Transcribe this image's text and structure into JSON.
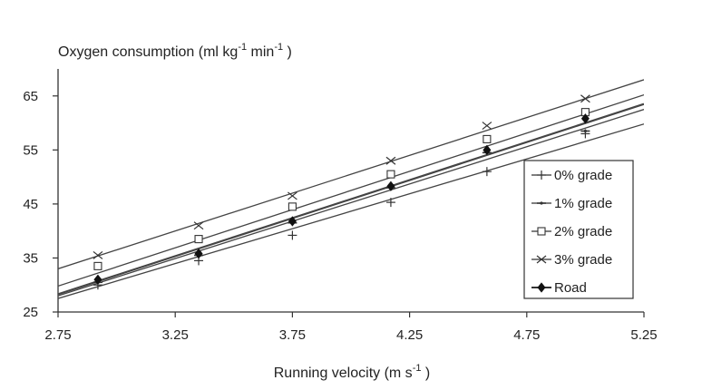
{
  "chart_data": {
    "type": "scatter",
    "title": "",
    "ylabel": "Oxygen consumption (ml kg-1 min-1)",
    "ylabel_parts": {
      "base1": "Oxygen consumption (ml kg",
      "sup1": "-1",
      "base2": " min",
      "sup2": "-1",
      "base3": " )"
    },
    "xlabel": "Running velocity (m s-1)",
    "xlabel_parts": {
      "base1": "Running velocity (m s",
      "sup1": "-1",
      "base2": " )"
    },
    "xlim": [
      2.75,
      5.25
    ],
    "ylim": [
      25,
      70
    ],
    "x_ticks": [
      "2.75",
      "3.25",
      "3.75",
      "4.25",
      "4.75",
      "5.25"
    ],
    "y_ticks": [
      "65",
      "55",
      "45",
      "35",
      "25"
    ],
    "x_tick_values": [
      2.75,
      3.25,
      3.75,
      4.25,
      4.75,
      5.25
    ],
    "y_tick_values": [
      65,
      55,
      45,
      35,
      25
    ],
    "x": [
      2.92,
      3.35,
      3.75,
      4.17,
      4.58,
      5.0
    ],
    "legend_position": "right",
    "grid": false,
    "series": [
      {
        "name": "0% grade",
        "marker": "plus",
        "values": [
          30.0,
          34.5,
          39.2,
          45.3,
          51.0,
          58.0
        ],
        "fit": [
          27.5,
          59.8
        ]
      },
      {
        "name": "1% grade",
        "marker": "dash",
        "values": [
          30.5,
          35.5,
          41.5,
          48.0,
          54.5,
          58.5
        ],
        "fit": [
          28.0,
          62.5
        ]
      },
      {
        "name": "2% grade",
        "marker": "square",
        "values": [
          33.5,
          38.5,
          44.5,
          50.5,
          57.0,
          62.0
        ],
        "fit": [
          29.8,
          65.2
        ]
      },
      {
        "name": "3% grade",
        "marker": "cross",
        "values": [
          35.5,
          41.0,
          46.5,
          53.0,
          59.5,
          64.5
        ],
        "fit": [
          33.0,
          68.0
        ]
      },
      {
        "name": "Road",
        "marker": "diamond",
        "values": [
          31.0,
          35.8,
          41.8,
          48.3,
          55.0,
          60.8
        ],
        "fit": [
          28.3,
          63.5
        ]
      }
    ]
  }
}
